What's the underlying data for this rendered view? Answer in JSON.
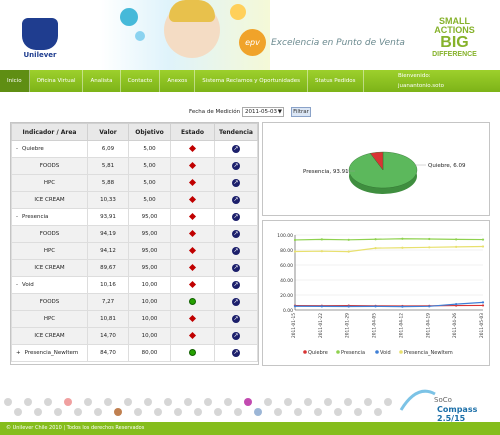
{
  "header": {
    "brand_name": "Unilever",
    "tagline": "Excelencia en Punto de Venta",
    "epv_badge": "epv",
    "small_actions": [
      "SMALL",
      "ACTIONS",
      "BIG",
      "DIFFERENCE"
    ]
  },
  "nav": {
    "items": [
      {
        "label": "Inicio",
        "active": true
      },
      {
        "label": "Oficina Virtual",
        "active": false
      },
      {
        "label": "Analista",
        "active": false
      },
      {
        "label": "Contacto",
        "active": false
      },
      {
        "label": "Anexos",
        "active": false
      },
      {
        "label": "Sistema Reclamos y Oportunidades",
        "active": false
      },
      {
        "label": "Status Pedidos",
        "active": false
      }
    ],
    "welcome_label": "Bienvenido:",
    "username": "juanantonio.soto"
  },
  "filter": {
    "label": "Fecha de Medición",
    "date_value": "2011-05-03",
    "button_label": "Filtrar"
  },
  "table": {
    "headers": [
      "Indicador / Area",
      "Valor",
      "Objetivo",
      "Estado",
      "Tendencia"
    ],
    "rows": [
      {
        "type": "group",
        "toggle": "-",
        "name": "Quiebre",
        "valor": "6,09",
        "objetivo": "5,00",
        "estado": "red",
        "tendencia": "arrow"
      },
      {
        "type": "child",
        "name": "FOODS",
        "valor": "5,81",
        "objetivo": "5,00",
        "estado": "red",
        "tendencia": "arrow"
      },
      {
        "type": "child",
        "name": "HPC",
        "valor": "5,88",
        "objetivo": "5,00",
        "estado": "red",
        "tendencia": "arrow"
      },
      {
        "type": "child",
        "name": "ICE CREAM",
        "valor": "10,33",
        "objetivo": "5,00",
        "estado": "red",
        "tendencia": "arrow"
      },
      {
        "type": "group",
        "toggle": "-",
        "name": "Presencia",
        "valor": "93,91",
        "objetivo": "95,00",
        "estado": "red",
        "tendencia": "arrow"
      },
      {
        "type": "child",
        "name": "FOODS",
        "valor": "94,19",
        "objetivo": "95,00",
        "estado": "red",
        "tendencia": "arrow"
      },
      {
        "type": "child",
        "name": "HPC",
        "valor": "94,12",
        "objetivo": "95,00",
        "estado": "red",
        "tendencia": "arrow"
      },
      {
        "type": "child",
        "name": "ICE CREAM",
        "valor": "89,67",
        "objetivo": "95,00",
        "estado": "red",
        "tendencia": "arrow"
      },
      {
        "type": "group",
        "toggle": "-",
        "name": "Void",
        "valor": "10,16",
        "objetivo": "10,00",
        "estado": "red",
        "tendencia": "arrow"
      },
      {
        "type": "child",
        "name": "FOODS",
        "valor": "7,27",
        "objetivo": "10,00",
        "estado": "green",
        "tendencia": "arrow"
      },
      {
        "type": "child",
        "name": "HPC",
        "valor": "10,81",
        "objetivo": "10,00",
        "estado": "red",
        "tendencia": "arrow"
      },
      {
        "type": "child",
        "name": "ICE CREAM",
        "valor": "14,70",
        "objetivo": "10,00",
        "estado": "red",
        "tendencia": "arrow"
      },
      {
        "type": "group",
        "toggle": "+",
        "name": "Presencia_NewItem",
        "valor": "84,70",
        "objetivo": "80,00",
        "estado": "green",
        "tendencia": "arrow"
      }
    ]
  },
  "chart_data": [
    {
      "type": "pie",
      "slices": [
        {
          "label": "Presencia, 93.91",
          "value": 93.91,
          "color": "#5cb85c"
        },
        {
          "label": "Quiebre, 6.09",
          "value": 6.09,
          "color": "#d83434"
        }
      ]
    },
    {
      "type": "line",
      "x": [
        "2011-01-15",
        "2011-01-22",
        "2011-01-29",
        "2011-04-05",
        "2011-04-12",
        "2011-04-19",
        "2011-04-26",
        "2011-05-03"
      ],
      "y_ticks": [
        "100.00",
        "80.00",
        "60.00",
        "40.00",
        "20.00",
        "0.00"
      ],
      "ylim": [
        0,
        100
      ],
      "series": [
        {
          "name": "Quiebre",
          "color": "#d83434",
          "values": [
            5.9,
            5.7,
            5.8,
            5.5,
            5.3,
            5.6,
            5.9,
            6.09
          ]
        },
        {
          "name": "Presencia",
          "color": "#8fd14f",
          "values": [
            93.4,
            94.2,
            93.6,
            94.3,
            95.0,
            94.7,
            94.2,
            93.91
          ]
        },
        {
          "name": "Void",
          "color": "#3f7fd6",
          "values": [
            5.0,
            4.8,
            4.7,
            4.8,
            4.5,
            4.9,
            7.8,
            10.16
          ]
        },
        {
          "name": "Presencia_NewItem",
          "color": "#e8e06e",
          "values": [
            78.0,
            78.4,
            77.8,
            82.5,
            83.0,
            83.6,
            84.2,
            84.7
          ]
        }
      ]
    }
  ],
  "footer": {
    "copyright": "© Unilever Chile  2010  |  Todos los derechos Reservados",
    "soco_title": "SoCo",
    "soco_sub": "Compass 2.5/15"
  }
}
